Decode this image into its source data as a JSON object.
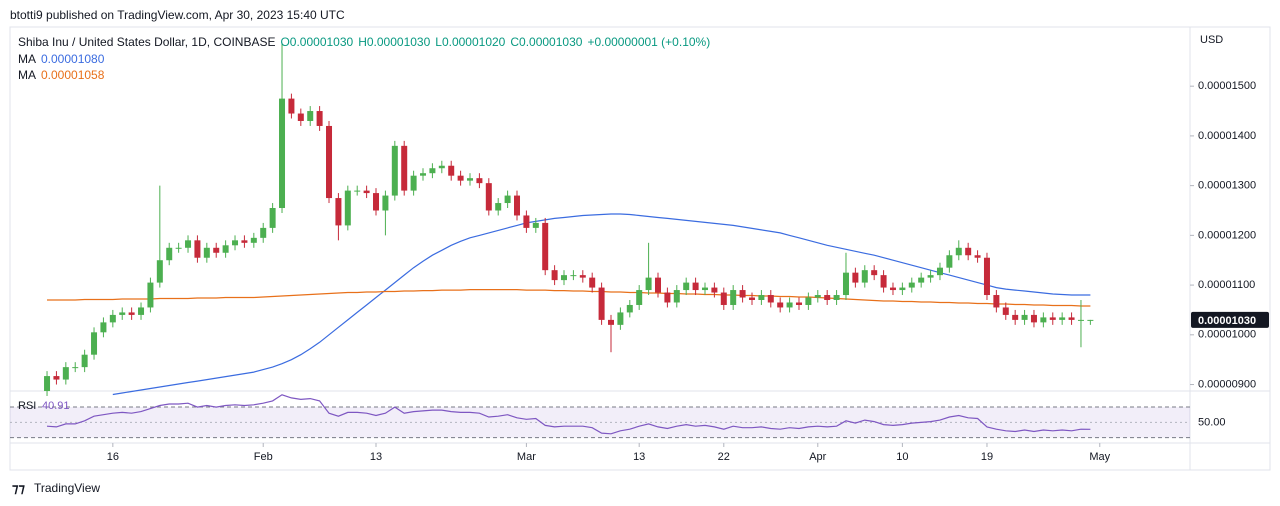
{
  "header": {
    "published": "btotti9 published on TradingView.com, Apr 30, 2023 15:40 UTC",
    "symbol": "Shiba Inu / United States Dollar, 1D, COINBASE",
    "o": "O0.00001030",
    "h": "H0.00001030",
    "l": "L0.00001020",
    "c": "C0.00001030",
    "change": "+0.00000001 (+0.10%)",
    "ma1": "MA",
    "ma1_value": "0.00001080",
    "ma2": "MA",
    "ma2_value": "0.00001058",
    "currency": "USD",
    "footer": "TradingView"
  },
  "chart_data": [
    {
      "type": "candlestick",
      "last_price_label": "0.00001030",
      "xlim": [
        -3.94,
        121.6
      ],
      "xticks": [
        {
          "value": 7,
          "label": "16"
        },
        {
          "value": 23,
          "label": "Feb"
        },
        {
          "value": 35,
          "label": "13"
        },
        {
          "value": 51,
          "label": "Mar"
        },
        {
          "value": 63,
          "label": "13"
        },
        {
          "value": 72,
          "label": "22"
        },
        {
          "value": 82,
          "label": "Apr"
        },
        {
          "value": 91,
          "label": "10"
        },
        {
          "value": 100,
          "label": "19"
        },
        {
          "value": 112,
          "label": "May"
        }
      ],
      "ylim": [
        8.87e-06,
        1.619e-05
      ],
      "yticks": [
        {
          "value": 9e-06,
          "label": "0.00000900"
        },
        {
          "value": 1e-05,
          "label": "0.00001000"
        },
        {
          "value": 1.1e-05,
          "label": "0.00001100"
        },
        {
          "value": 1.2e-05,
          "label": "0.00001200"
        },
        {
          "value": 1.3e-05,
          "label": "0.00001300"
        },
        {
          "value": 1.4e-05,
          "label": "0.00001400"
        },
        {
          "value": 1.5e-05,
          "label": "0.00001500"
        }
      ],
      "up_color": "#4caf50",
      "down_color": "#c62a3a",
      "open": [
        8.87e-06,
        9.17e-06,
        9.1e-06,
        9.35e-06,
        9.35e-06,
        9.6e-06,
        1.005e-05,
        1.025e-05,
        1.04e-05,
        1.045e-05,
        1.04e-05,
        1.055e-05,
        1.105e-05,
        1.15e-05,
        1.175e-05,
        1.175e-05,
        1.19e-05,
        1.155e-05,
        1.175e-05,
        1.165e-05,
        1.18e-05,
        1.19e-05,
        1.185e-05,
        1.195e-05,
        1.215e-05,
        1.255e-05,
        1.475e-05,
        1.445e-05,
        1.43e-05,
        1.45e-05,
        1.42e-05,
        1.275e-05,
        1.22e-05,
        1.29e-05,
        1.29e-05,
        1.285e-05,
        1.25e-05,
        1.28e-05,
        1.38e-05,
        1.29e-05,
        1.32e-05,
        1.325e-05,
        1.335e-05,
        1.34e-05,
        1.32e-05,
        1.31e-05,
        1.315e-05,
        1.305e-05,
        1.25e-05,
        1.265e-05,
        1.28e-05,
        1.24e-05,
        1.215e-05,
        1.225e-05,
        1.13e-05,
        1.11e-05,
        1.12e-05,
        1.12e-05,
        1.115e-05,
        1.095e-05,
        1.03e-05,
        1.02e-05,
        1.045e-05,
        1.06e-05,
        1.09e-05,
        1.115e-05,
        1.085e-05,
        1.065e-05,
        1.09e-05,
        1.105e-05,
        1.09e-05,
        1.095e-05,
        1.085e-05,
        1.06e-05,
        1.09e-05,
        1.075e-05,
        1.07e-05,
        1.08e-05,
        1.065e-05,
        1.055e-05,
        1.065e-05,
        1.06e-05,
        1.075e-05,
        1.08e-05,
        1.07e-05,
        1.08e-05,
        1.125e-05,
        1.105e-05,
        1.13e-05,
        1.12e-05,
        1.095e-05,
        1.09e-05,
        1.095e-05,
        1.105e-05,
        1.115e-05,
        1.12e-05,
        1.135e-05,
        1.16e-05,
        1.175e-05,
        1.16e-05,
        1.155e-05,
        1.08e-05,
        1.055e-05,
        1.04e-05,
        1.03e-05,
        1.04e-05,
        1.025e-05,
        1.035e-05,
        1.03e-05,
        1.035e-05,
        1.03e-05,
        1.03e-05
      ],
      "high": [
        9.27e-06,
        9.27e-06,
        9.45e-06,
        9.45e-06,
        9.7e-06,
        1.015e-05,
        1.035e-05,
        1.05e-05,
        1.055e-05,
        1.055e-05,
        1.065e-05,
        1.115e-05,
        1.3e-05,
        1.185e-05,
        1.185e-05,
        1.2e-05,
        1.2e-05,
        1.185e-05,
        1.185e-05,
        1.19e-05,
        1.2e-05,
        1.2e-05,
        1.205e-05,
        1.225e-05,
        1.265e-05,
        1.585e-05,
        1.485e-05,
        1.455e-05,
        1.46e-05,
        1.46e-05,
        1.43e-05,
        1.285e-05,
        1.3e-05,
        1.3e-05,
        1.3e-05,
        1.295e-05,
        1.29e-05,
        1.39e-05,
        1.39e-05,
        1.33e-05,
        1.335e-05,
        1.345e-05,
        1.35e-05,
        1.35e-05,
        1.33e-05,
        1.325e-05,
        1.325e-05,
        1.315e-05,
        1.275e-05,
        1.29e-05,
        1.29e-05,
        1.25e-05,
        1.235e-05,
        1.235e-05,
        1.14e-05,
        1.13e-05,
        1.13e-05,
        1.13e-05,
        1.125e-05,
        1.105e-05,
        1.04e-05,
        1.055e-05,
        1.07e-05,
        1.1e-05,
        1.185e-05,
        1.125e-05,
        1.095e-05,
        1.1e-05,
        1.115e-05,
        1.115e-05,
        1.105e-05,
        1.105e-05,
        1.095e-05,
        1.1e-05,
        1.1e-05,
        1.085e-05,
        1.09e-05,
        1.09e-05,
        1.075e-05,
        1.075e-05,
        1.075e-05,
        1.085e-05,
        1.09e-05,
        1.09e-05,
        1.09e-05,
        1.165e-05,
        1.135e-05,
        1.14e-05,
        1.14e-05,
        1.13e-05,
        1.105e-05,
        1.105e-05,
        1.115e-05,
        1.125e-05,
        1.13e-05,
        1.145e-05,
        1.17e-05,
        1.19e-05,
        1.185e-05,
        1.17e-05,
        1.165e-05,
        1.09e-05,
        1.065e-05,
        1.05e-05,
        1.05e-05,
        1.05e-05,
        1.045e-05,
        1.045e-05,
        1.045e-05,
        1.045e-05,
        1.07e-05,
        1.03e-05
      ],
      "low": [
        8.77e-06,
        9e-06,
        9e-06,
        9.25e-06,
        9.25e-06,
        9.5e-06,
        9.95e-06,
        1.015e-05,
        1.03e-05,
        1.03e-05,
        1.03e-05,
        1.045e-05,
        1.095e-05,
        1.14e-05,
        1.165e-05,
        1.165e-05,
        1.145e-05,
        1.145e-05,
        1.155e-05,
        1.155e-05,
        1.17e-05,
        1.175e-05,
        1.175e-05,
        1.185e-05,
        1.205e-05,
        1.245e-05,
        1.435e-05,
        1.42e-05,
        1.42e-05,
        1.41e-05,
        1.265e-05,
        1.19e-05,
        1.21e-05,
        1.28e-05,
        1.275e-05,
        1.24e-05,
        1.2e-05,
        1.27e-05,
        1.28e-05,
        1.28e-05,
        1.31e-05,
        1.315e-05,
        1.325e-05,
        1.31e-05,
        1.3e-05,
        1.3e-05,
        1.295e-05,
        1.24e-05,
        1.24e-05,
        1.255e-05,
        1.23e-05,
        1.205e-05,
        1.205e-05,
        1.12e-05,
        1.1e-05,
        1.1e-05,
        1.11e-05,
        1.105e-05,
        1.085e-05,
        1.02e-05,
        9.65e-06,
        1.01e-05,
        1.035e-05,
        1.05e-05,
        1.08e-05,
        1.075e-05,
        1.055e-05,
        1.055e-05,
        1.08e-05,
        1.08e-05,
        1.08e-05,
        1.075e-05,
        1.05e-05,
        1.05e-05,
        1.065e-05,
        1.06e-05,
        1.06e-05,
        1.055e-05,
        1.045e-05,
        1.045e-05,
        1.05e-05,
        1.05e-05,
        1.065e-05,
        1.06e-05,
        1.06e-05,
        1.07e-05,
        1.095e-05,
        1.095e-05,
        1.11e-05,
        1.085e-05,
        1.08e-05,
        1.08e-05,
        1.085e-05,
        1.095e-05,
        1.105e-05,
        1.11e-05,
        1.125e-05,
        1.15e-05,
        1.15e-05,
        1.145e-05,
        1.07e-05,
        1.045e-05,
        1.03e-05,
        1.02e-05,
        1.02e-05,
        1.015e-05,
        1.015e-05,
        1.02e-05,
        1.02e-05,
        1.02e-05,
        9.75e-06,
        1.02e-05
      ],
      "close": [
        9.17e-06,
        9.1e-06,
        9.35e-06,
        9.35e-06,
        9.6e-06,
        1.005e-05,
        1.025e-05,
        1.04e-05,
        1.045e-05,
        1.04e-05,
        1.055e-05,
        1.105e-05,
        1.15e-05,
        1.175e-05,
        1.175e-05,
        1.19e-05,
        1.155e-05,
        1.175e-05,
        1.165e-05,
        1.18e-05,
        1.19e-05,
        1.185e-05,
        1.195e-05,
        1.215e-05,
        1.255e-05,
        1.475e-05,
        1.445e-05,
        1.43e-05,
        1.45e-05,
        1.42e-05,
        1.275e-05,
        1.22e-05,
        1.29e-05,
        1.29e-05,
        1.285e-05,
        1.25e-05,
        1.28e-05,
        1.38e-05,
        1.29e-05,
        1.32e-05,
        1.325e-05,
        1.335e-05,
        1.34e-05,
        1.32e-05,
        1.31e-05,
        1.315e-05,
        1.305e-05,
        1.25e-05,
        1.265e-05,
        1.28e-05,
        1.24e-05,
        1.215e-05,
        1.225e-05,
        1.13e-05,
        1.11e-05,
        1.12e-05,
        1.12e-05,
        1.115e-05,
        1.095e-05,
        1.03e-05,
        1.02e-05,
        1.045e-05,
        1.06e-05,
        1.09e-05,
        1.115e-05,
        1.085e-05,
        1.065e-05,
        1.09e-05,
        1.105e-05,
        1.09e-05,
        1.095e-05,
        1.085e-05,
        1.06e-05,
        1.09e-05,
        1.075e-05,
        1.07e-05,
        1.08e-05,
        1.065e-05,
        1.055e-05,
        1.065e-05,
        1.06e-05,
        1.075e-05,
        1.08e-05,
        1.07e-05,
        1.08e-05,
        1.125e-05,
        1.105e-05,
        1.13e-05,
        1.12e-05,
        1.095e-05,
        1.09e-05,
        1.095e-05,
        1.105e-05,
        1.115e-05,
        1.12e-05,
        1.135e-05,
        1.16e-05,
        1.175e-05,
        1.16e-05,
        1.155e-05,
        1.08e-05,
        1.055e-05,
        1.04e-05,
        1.03e-05,
        1.04e-05,
        1.025e-05,
        1.035e-05,
        1.03e-05,
        1.035e-05,
        1.03e-05,
        1.03e-05,
        1.03e-05
      ],
      "series": [
        {
          "name": "MA",
          "color": "#3b6ce0",
          "values": [
            null,
            null,
            null,
            null,
            null,
            null,
            null,
            8.8e-06,
            8.83e-06,
            8.86e-06,
            8.89e-06,
            8.92e-06,
            8.95e-06,
            8.98e-06,
            9.01e-06,
            9.04e-06,
            9.07e-06,
            9.1e-06,
            9.13e-06,
            9.16e-06,
            9.19e-06,
            9.22e-06,
            9.25e-06,
            9.3e-06,
            9.35e-06,
            9.42e-06,
            9.5e-06,
            9.6e-06,
            9.72e-06,
            9.85e-06,
            1e-05,
            1.015e-05,
            1.03e-05,
            1.045e-05,
            1.06e-05,
            1.075e-05,
            1.09e-05,
            1.105e-05,
            1.12e-05,
            1.135e-05,
            1.148e-05,
            1.16e-05,
            1.17e-05,
            1.18e-05,
            1.188e-05,
            1.195e-05,
            1.2e-05,
            1.205e-05,
            1.21e-05,
            1.215e-05,
            1.22e-05,
            1.225e-05,
            1.228e-05,
            1.231e-05,
            1.234e-05,
            1.236e-05,
            1.238e-05,
            1.24e-05,
            1.241e-05,
            1.242e-05,
            1.243e-05,
            1.243e-05,
            1.242e-05,
            1.24e-05,
            1.238e-05,
            1.236e-05,
            1.234e-05,
            1.232e-05,
            1.23e-05,
            1.228e-05,
            1.226e-05,
            1.224e-05,
            1.222e-05,
            1.22e-05,
            1.217e-05,
            1.214e-05,
            1.211e-05,
            1.208e-05,
            1.205e-05,
            1.2e-05,
            1.195e-05,
            1.19e-05,
            1.185e-05,
            1.18e-05,
            1.176e-05,
            1.172e-05,
            1.168e-05,
            1.164e-05,
            1.16e-05,
            1.155e-05,
            1.15e-05,
            1.145e-05,
            1.14e-05,
            1.135e-05,
            1.13e-05,
            1.125e-05,
            1.12e-05,
            1.115e-05,
            1.11e-05,
            1.105e-05,
            1.1e-05,
            1.095e-05,
            1.092e-05,
            1.09e-05,
            1.088e-05,
            1.086e-05,
            1.084e-05,
            1.082e-05,
            1.081e-05,
            1.08e-05,
            1.08e-05,
            1.08e-05
          ]
        },
        {
          "name": "MA",
          "color": "#e8701a",
          "values": [
            1.07e-05,
            1.07e-05,
            1.07e-05,
            1.07e-05,
            1.071e-05,
            1.071e-05,
            1.071e-05,
            1.071e-05,
            1.072e-05,
            1.072e-05,
            1.072e-05,
            1.072e-05,
            1.073e-05,
            1.073e-05,
            1.073e-05,
            1.073e-05,
            1.074e-05,
            1.074e-05,
            1.074e-05,
            1.075e-05,
            1.075e-05,
            1.075e-05,
            1.075e-05,
            1.076e-05,
            1.077e-05,
            1.078e-05,
            1.079e-05,
            1.08e-05,
            1.081e-05,
            1.082e-05,
            1.083e-05,
            1.084e-05,
            1.085e-05,
            1.085e-05,
            1.086e-05,
            1.086e-05,
            1.087e-05,
            1.087e-05,
            1.088e-05,
            1.088e-05,
            1.089e-05,
            1.089e-05,
            1.09e-05,
            1.09e-05,
            1.09e-05,
            1.091e-05,
            1.091e-05,
            1.091e-05,
            1.091e-05,
            1.091e-05,
            1.091e-05,
            1.09e-05,
            1.09e-05,
            1.09e-05,
            1.089e-05,
            1.089e-05,
            1.088e-05,
            1.088e-05,
            1.087e-05,
            1.087e-05,
            1.086e-05,
            1.086e-05,
            1.085e-05,
            1.085e-05,
            1.084e-05,
            1.084e-05,
            1.083e-05,
            1.083e-05,
            1.082e-05,
            1.082e-05,
            1.081e-05,
            1.081e-05,
            1.08e-05,
            1.08e-05,
            1.079e-05,
            1.079e-05,
            1.078e-05,
            1.078e-05,
            1.077e-05,
            1.077e-05,
            1.076e-05,
            1.076e-05,
            1.075e-05,
            1.074e-05,
            1.073e-05,
            1.072e-05,
            1.071e-05,
            1.07e-05,
            1.069e-05,
            1.068e-05,
            1.068e-05,
            1.067e-05,
            1.067e-05,
            1.066e-05,
            1.066e-05,
            1.065e-05,
            1.065e-05,
            1.064e-05,
            1.064e-05,
            1.063e-05,
            1.063e-05,
            1.062e-05,
            1.062e-05,
            1.061e-05,
            1.061e-05,
            1.06e-05,
            1.06e-05,
            1.059e-05,
            1.059e-05,
            1.059e-05,
            1.058e-05,
            1.058e-05
          ]
        }
      ]
    },
    {
      "type": "line",
      "title": "RSI",
      "xlim": [
        -3.94,
        121.6
      ],
      "ylim": [
        23,
        91
      ],
      "yticks": [
        {
          "value": 50,
          "label": "50.00"
        }
      ],
      "band": [
        30,
        70
      ],
      "band_color": "#7e57c2",
      "series": [
        {
          "name": "RSI",
          "color": "#7e57c2",
          "values": [
            45,
            44,
            48,
            48,
            52,
            58,
            60,
            62,
            63,
            62,
            64,
            68,
            72,
            74,
            74,
            75,
            70,
            72,
            70,
            72,
            73,
            72,
            73,
            75,
            78,
            86,
            82,
            80,
            81,
            78,
            62,
            58,
            63,
            63,
            62,
            59,
            62,
            70,
            62,
            64,
            65,
            66,
            66,
            64,
            63,
            63,
            62,
            57,
            58,
            60,
            56,
            54,
            55,
            46,
            44,
            45,
            45,
            45,
            43,
            36,
            35,
            39,
            41,
            45,
            48,
            44,
            42,
            45,
            47,
            45,
            46,
            44,
            41,
            45,
            43,
            43,
            44,
            42,
            41,
            43,
            42,
            44,
            45,
            44,
            45,
            52,
            49,
            53,
            51,
            47,
            46,
            47,
            49,
            50,
            51,
            53,
            57,
            59,
            56,
            55,
            44,
            41,
            39,
            38,
            40,
            38,
            40,
            39,
            40,
            39,
            41,
            40.91
          ]
        }
      ]
    }
  ]
}
